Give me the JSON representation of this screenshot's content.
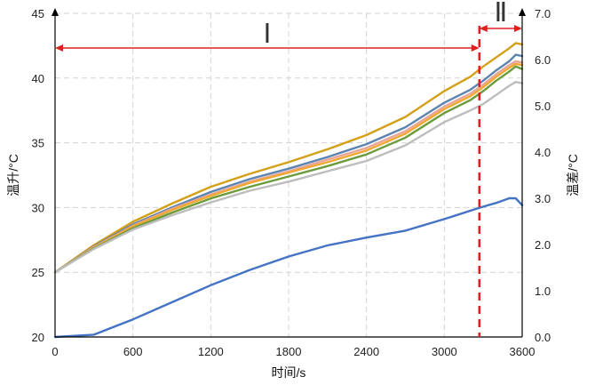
{
  "chart_data": {
    "type": "line",
    "title": "",
    "xlabel": "时间/s",
    "ylabel_left": "温升/°C",
    "ylabel_right": "温差/°C",
    "xlim": [
      0,
      3600
    ],
    "ylim_left": [
      20,
      45
    ],
    "ylim_right": [
      0.0,
      7.0
    ],
    "x_ticks": [
      0,
      600,
      1200,
      1800,
      2400,
      3000,
      3600
    ],
    "y_ticks_left": [
      20,
      25,
      30,
      35,
      40,
      45
    ],
    "y_ticks_right": [
      "0.0",
      "1.0",
      "2.0",
      "3.0",
      "4.0",
      "5.0",
      "6.0",
      "7.0"
    ],
    "grid": true,
    "annotations": [
      {
        "label": "Ⅰ",
        "x_start": 0,
        "x_end": 3270
      },
      {
        "label": "Ⅱ",
        "x_start": 3270,
        "x_end": 3600
      }
    ],
    "divider_x": 3270,
    "x": [
      0,
      300,
      600,
      900,
      1200,
      1500,
      1800,
      2100,
      2400,
      2700,
      3000,
      3200,
      3300,
      3400,
      3500,
      3550,
      3600
    ],
    "series": [
      {
        "axis": "left",
        "color": "#d4a017",
        "values": [
          25.0,
          27.1,
          28.9,
          30.3,
          31.6,
          32.6,
          33.5,
          34.5,
          35.6,
          37.0,
          39.0,
          40.1,
          40.9,
          41.6,
          42.3,
          42.7,
          42.6
        ]
      },
      {
        "axis": "left",
        "color": "#5b84b1",
        "values": [
          25.0,
          27.0,
          28.7,
          30.0,
          31.2,
          32.2,
          33.0,
          33.9,
          34.9,
          36.2,
          38.1,
          39.1,
          39.8,
          40.6,
          41.3,
          41.8,
          41.7
        ]
      },
      {
        "axis": "left",
        "color": "#e8a598",
        "values": [
          25.0,
          26.95,
          28.6,
          29.9,
          31.0,
          32.0,
          32.8,
          33.7,
          34.6,
          35.9,
          37.8,
          38.8,
          39.5,
          40.3,
          41.0,
          41.3,
          41.2
        ]
      },
      {
        "axis": "left",
        "color": "#f0a830",
        "values": [
          25.0,
          26.9,
          28.55,
          29.8,
          30.9,
          31.9,
          32.7,
          33.5,
          34.4,
          35.7,
          37.6,
          38.6,
          39.3,
          40.1,
          40.8,
          41.1,
          41.0
        ]
      },
      {
        "axis": "left",
        "color": "#6b9b3a",
        "values": [
          25.0,
          26.85,
          28.4,
          29.6,
          30.7,
          31.6,
          32.4,
          33.2,
          34.1,
          35.4,
          37.3,
          38.3,
          39.0,
          39.8,
          40.5,
          40.9,
          40.7
        ]
      },
      {
        "axis": "left",
        "color": "#bdbdbd",
        "values": [
          25.0,
          26.8,
          28.3,
          29.4,
          30.4,
          31.3,
          32.0,
          32.8,
          33.6,
          34.8,
          36.6,
          37.5,
          38.0,
          38.7,
          39.4,
          39.7,
          39.6
        ]
      },
      {
        "axis": "right",
        "color": "#4472c4",
        "values": [
          0.0,
          0.05,
          0.38,
          0.75,
          1.12,
          1.45,
          1.74,
          1.98,
          2.15,
          2.3,
          2.55,
          2.73,
          2.82,
          2.9,
          3.0,
          3.0,
          2.85
        ]
      }
    ]
  }
}
